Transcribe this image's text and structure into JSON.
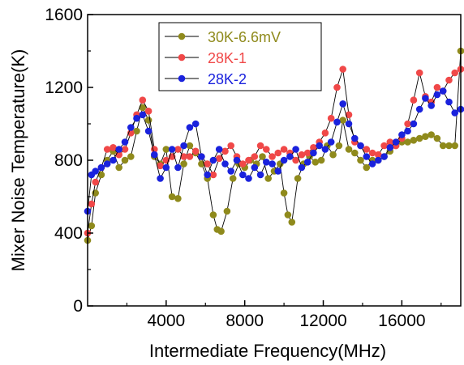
{
  "chart_data": {
    "type": "line",
    "xlabel": "Intermediate Frequency(MHz)",
    "ylabel": "Mixer Noise Temperature(K)",
    "xlim": [
      0,
      19000
    ],
    "ylim": [
      0,
      1600
    ],
    "xticks": [
      4000,
      8000,
      12000,
      16000
    ],
    "yticks": [
      0,
      400,
      800,
      1200,
      1600
    ],
    "grid": false,
    "legend_position": "top-left",
    "series": [
      {
        "name": "30K-6.6mV",
        "color": "#8f8a1c",
        "x": [
          0,
          200,
          400,
          700,
          1000,
          1300,
          1600,
          1900,
          2200,
          2500,
          2800,
          3100,
          3400,
          3700,
          4000,
          4300,
          4600,
          4900,
          5200,
          5500,
          5800,
          6100,
          6400,
          6600,
          6800,
          7100,
          7400,
          7700,
          8000,
          8300,
          8600,
          8900,
          9200,
          9500,
          9800,
          10000,
          10200,
          10400,
          10700,
          11000,
          11300,
          11600,
          11900,
          12200,
          12500,
          12800,
          13000,
          13300,
          13600,
          13900,
          14200,
          14500,
          14800,
          15100,
          15400,
          15700,
          16000,
          16300,
          16600,
          16900,
          17200,
          17500,
          17800,
          18100,
          18400,
          18700,
          19000
        ],
        "values": [
          360,
          440,
          620,
          720,
          800,
          850,
          760,
          800,
          820,
          960,
          1090,
          1020,
          820,
          780,
          860,
          600,
          590,
          780,
          880,
          840,
          780,
          700,
          500,
          420,
          410,
          520,
          700,
          780,
          760,
          800,
          780,
          820,
          700,
          740,
          780,
          620,
          500,
          460,
          700,
          780,
          820,
          790,
          800,
          880,
          830,
          880,
          1020,
          860,
          840,
          800,
          760,
          800,
          800,
          820,
          850,
          880,
          900,
          900,
          910,
          920,
          930,
          940,
          920,
          880,
          880,
          880,
          1400
        ]
      },
      {
        "name": "28K-1",
        "color": "#f04848",
        "x": [
          0,
          200,
          400,
          700,
          1000,
          1300,
          1600,
          1900,
          2200,
          2500,
          2800,
          3100,
          3400,
          3700,
          4000,
          4300,
          4600,
          4900,
          5200,
          5500,
          5800,
          6100,
          6400,
          6700,
          7000,
          7300,
          7600,
          7900,
          8200,
          8500,
          8800,
          9100,
          9400,
          9700,
          10000,
          10300,
          10600,
          10900,
          11200,
          11500,
          11800,
          12100,
          12400,
          12700,
          13000,
          13300,
          13600,
          13900,
          14200,
          14500,
          14800,
          15100,
          15400,
          15700,
          16000,
          16300,
          16600,
          16900,
          17200,
          17500,
          17800,
          18100,
          18400,
          18700,
          19000
        ],
        "values": [
          400,
          560,
          680,
          760,
          860,
          870,
          830,
          860,
          950,
          1050,
          1130,
          1070,
          860,
          770,
          800,
          820,
          860,
          820,
          820,
          850,
          820,
          780,
          720,
          810,
          850,
          880,
          820,
          780,
          800,
          820,
          880,
          860,
          820,
          840,
          860,
          840,
          800,
          830,
          840,
          870,
          900,
          950,
          1030,
          1200,
          1300,
          1050,
          900,
          880,
          860,
          840,
          830,
          880,
          900,
          880,
          920,
          1000,
          1130,
          1280,
          1150,
          1120,
          1200,
          1180,
          1240,
          1280,
          1300
        ]
      },
      {
        "name": "28K-2",
        "color": "#1a22dd",
        "x": [
          0,
          200,
          400,
          700,
          1000,
          1300,
          1600,
          1900,
          2200,
          2500,
          2800,
          3100,
          3400,
          3700,
          4000,
          4300,
          4600,
          4900,
          5200,
          5500,
          5800,
          6100,
          6400,
          6700,
          7000,
          7300,
          7600,
          7900,
          8200,
          8500,
          8800,
          9100,
          9400,
          9700,
          10000,
          10300,
          10600,
          10900,
          11200,
          11500,
          11800,
          12100,
          12400,
          12700,
          13000,
          13300,
          13600,
          13900,
          14200,
          14500,
          14800,
          15100,
          15400,
          15700,
          16000,
          16300,
          16600,
          16900,
          17200,
          17500,
          17800,
          18100,
          18400,
          18700,
          19000
        ],
        "values": [
          520,
          720,
          740,
          760,
          780,
          800,
          860,
          900,
          980,
          1030,
          1050,
          960,
          830,
          700,
          760,
          860,
          760,
          880,
          980,
          1000,
          820,
          720,
          800,
          860,
          780,
          740,
          800,
          720,
          700,
          760,
          720,
          790,
          780,
          740,
          800,
          820,
          860,
          760,
          790,
          840,
          880,
          860,
          900,
          1010,
          1110,
          1000,
          920,
          880,
          820,
          780,
          800,
          820,
          870,
          900,
          940,
          960,
          1000,
          1080,
          1140,
          1100,
          1160,
          1180,
          1120,
          1060,
          1080
        ]
      }
    ]
  }
}
